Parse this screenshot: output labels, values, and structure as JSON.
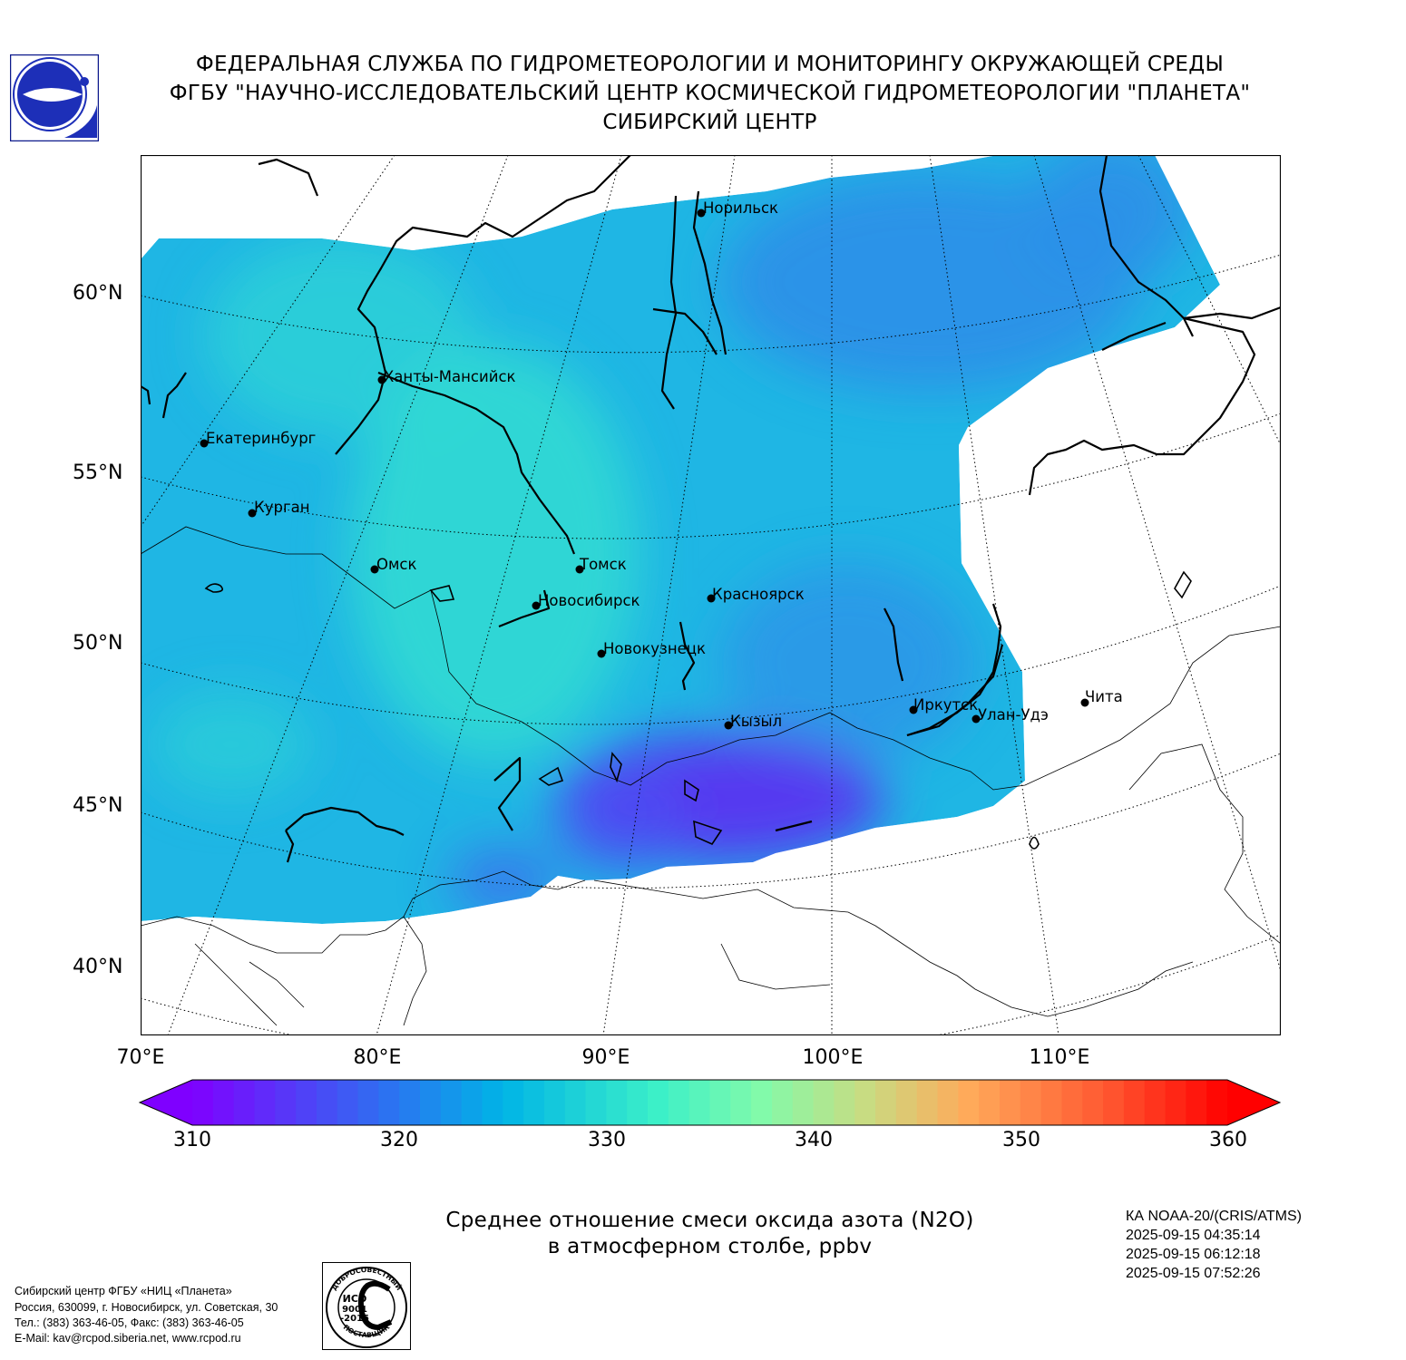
{
  "header": {
    "line1": "ФЕДЕРАЛЬНАЯ СЛУЖБА ПО ГИДРОМЕТЕОРОЛОГИИ И МОНИТОРИНГУ ОКРУЖАЮЩЕЙ СРЕДЫ",
    "line2": "ФГБУ \"НАУЧНО-ИССЛЕДОВАТЕЛЬСКИЙ ЦЕНТР КОСМИЧЕСКОЙ ГИДРОМЕТЕОРОЛОГИИ \"ПЛАНЕТА\"",
    "line3": "СИБИРСКИЙ ЦЕНТР"
  },
  "map": {
    "lat_labels": [
      "60°N",
      "55°N",
      "50°N",
      "45°N",
      "40°N"
    ],
    "lon_labels": [
      "70°E",
      "80°E",
      "90°E",
      "100°E",
      "110°E"
    ],
    "cities": [
      {
        "name": "Норильск"
      },
      {
        "name": "Ханты-Мансийск"
      },
      {
        "name": "Екатеринбург"
      },
      {
        "name": "Курган"
      },
      {
        "name": "Омск"
      },
      {
        "name": "Томск"
      },
      {
        "name": "Новосибирск"
      },
      {
        "name": "Красноярск"
      },
      {
        "name": "Новокузнецк"
      },
      {
        "name": "Кызыл"
      },
      {
        "name": "Иркутск"
      },
      {
        "name": "Улан-Удэ"
      },
      {
        "name": "Чита"
      }
    ],
    "field_colors": {
      "swath": "#1fb6e4",
      "high": "#33dcd2",
      "low": "#5a32f0",
      "east": "#2c8fe8"
    }
  },
  "colorbar": {
    "min": 310,
    "max": 360,
    "ticks": [
      "310",
      "320",
      "330",
      "340",
      "350",
      "360"
    ]
  },
  "title": {
    "line1": "Среднее отношение смеси оксида азота (N2O)",
    "line2": "в атмосферном столбе, ppbv"
  },
  "satellite": {
    "name": "КА NOAA-20/(CRIS/ATMS)",
    "times": [
      "2025-09-15 04:35:14",
      "2025-09-15 06:12:18",
      "2025-09-15 07:52:26"
    ]
  },
  "footer": {
    "address": [
      "Сибирский центр ФГБУ «НИЦ «Планета»",
      "Россия, 630099, г. Новосибирск, ул. Советская, 30",
      "Тел.: (383) 363-46-05, Факс: (383) 363-46-05",
      "E-Mail: kav@rcpod.siberia.net, www.rcpod.ru"
    ],
    "iso": {
      "top": "ДОБРОСОВЕСТНЫЙ",
      "line1": "ИСО",
      "line2": "9001",
      "line3": "-2015",
      "bottom": "ПОСТАВЩИК"
    }
  }
}
